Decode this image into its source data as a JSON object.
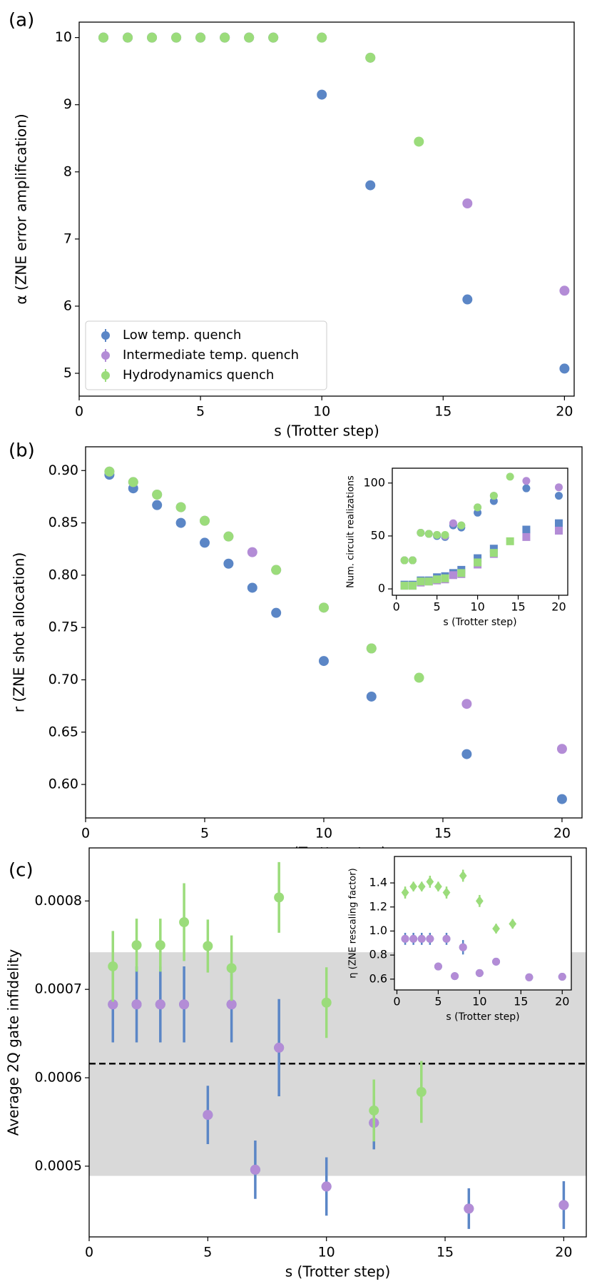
{
  "chart_data": [
    {
      "type": "scatter",
      "title": "(a)",
      "xlabel": "s (Trotter step)",
      "ylabel": "α (ZNE error amplification)",
      "xlim": [
        0,
        20.4
      ],
      "ylim": [
        4.66,
        10.23
      ],
      "xticks": [
        0,
        5,
        10,
        15,
        20
      ],
      "yticks": [
        5,
        6,
        7,
        8,
        9,
        10
      ],
      "legend": "lower left",
      "series": [
        {
          "name": "Low temp. quench",
          "color": "#5b86c6",
          "marker": "circle",
          "x": [
            1,
            2,
            3,
            4,
            5,
            6,
            7,
            8,
            10,
            12,
            16,
            20
          ],
          "y": [
            10,
            10,
            10,
            10,
            10,
            10,
            10,
            10,
            9.15,
            7.8,
            6.1,
            5.07
          ]
        },
        {
          "name": "Intermediate temp. quench",
          "color": "#b38cd6",
          "marker": "circle",
          "x": [
            1,
            2,
            3,
            4,
            5,
            6,
            7,
            8,
            10,
            12,
            16,
            20
          ],
          "y": [
            10,
            10,
            10,
            10,
            10,
            10,
            10,
            10,
            10,
            9.7,
            7.53,
            6.23
          ]
        },
        {
          "name": "Hydrodynamics quench",
          "color": "#9bdc7b",
          "marker": "circle",
          "x": [
            1,
            2,
            3,
            4,
            5,
            6,
            7,
            8,
            10,
            12,
            14
          ],
          "y": [
            10,
            10,
            10,
            10,
            10,
            10,
            10,
            10,
            10,
            9.7,
            8.45
          ]
        }
      ]
    },
    {
      "type": "scatter",
      "title": "(b)",
      "xlabel": "s (Trotter step)",
      "ylabel": "r (ZNE shot allocation)",
      "xlim": [
        0,
        20.84
      ],
      "ylim": [
        0.568,
        0.9227
      ],
      "xticks": [
        0,
        5,
        10,
        15,
        20
      ],
      "yticks": [
        {
          "value": 0.6,
          "label": "0.60"
        },
        0.65,
        {
          "value": 0.7,
          "label": "0.70"
        },
        0.75,
        {
          "value": 0.8,
          "label": "0.80"
        },
        0.85,
        {
          "value": 0.9,
          "label": "0.90"
        }
      ],
      "series": [
        {
          "color": "#5b86c6",
          "marker": "circle",
          "x": [
            1,
            2,
            3,
            4,
            5,
            6,
            7,
            8,
            10,
            12,
            16,
            20
          ],
          "y": [
            0.896,
            0.883,
            0.867,
            0.85,
            0.831,
            0.811,
            0.788,
            0.764,
            0.718,
            0.684,
            0.629,
            0.586
          ]
        },
        {
          "color": "#b38cd6",
          "marker": "circle",
          "x": [
            1,
            2,
            3,
            4,
            5,
            6,
            7,
            8,
            10,
            12,
            16,
            20
          ],
          "y": [
            0.899,
            0.889,
            0.877,
            0.865,
            0.852,
            0.837,
            0.822,
            0.805,
            0.769,
            0.73,
            0.677,
            0.634
          ]
        },
        {
          "color": "#9bdc7b",
          "marker": "circle",
          "x": [
            1,
            2,
            3,
            4,
            5,
            6,
            8,
            10,
            12,
            14
          ],
          "y": [
            0.899,
            0.889,
            0.877,
            0.865,
            0.852,
            0.837,
            0.805,
            0.769,
            0.73,
            0.702
          ]
        }
      ]
    },
    {
      "type": "scatter",
      "xlabel": "s (Trotter step)",
      "ylabel": "Num. circuit realizations",
      "xlim": [
        -0.5,
        21.1
      ],
      "ylim": [
        -6,
        114
      ],
      "xticks": [
        0,
        5,
        10,
        15,
        20
      ],
      "yticks": [
        0,
        50,
        100
      ],
      "series": [
        {
          "color": "#5b86c6",
          "marker": "circle",
          "x": [
            1,
            2,
            3,
            4,
            5,
            6,
            7,
            8,
            10,
            12,
            16,
            20
          ],
          "y": [
            27,
            27,
            53,
            52,
            50,
            49,
            60,
            58,
            72,
            83,
            95,
            88
          ]
        },
        {
          "color": "#b38cd6",
          "marker": "circle",
          "x": [
            1,
            2,
            3,
            4,
            5,
            6,
            7,
            8,
            10,
            12,
            16,
            20
          ],
          "y": [
            27,
            27,
            53,
            52,
            51,
            50,
            62,
            60,
            77,
            88,
            102,
            96
          ]
        },
        {
          "color": "#9bdc7b",
          "marker": "circle",
          "x": [
            1,
            2,
            3,
            4,
            5,
            6,
            8,
            10,
            12,
            14
          ],
          "y": [
            27,
            27,
            53,
            52,
            51,
            51,
            60,
            77,
            88,
            106
          ]
        },
        {
          "color": "#5b86c6",
          "marker": "square",
          "x": [
            1,
            2,
            3,
            4,
            5,
            6,
            7,
            8,
            10,
            12,
            16,
            20
          ],
          "y": [
            4,
            4,
            8,
            8,
            11,
            12,
            15,
            18,
            29,
            38,
            56,
            62
          ]
        },
        {
          "color": "#b38cd6",
          "marker": "square",
          "x": [
            1,
            2,
            3,
            4,
            5,
            6,
            7,
            8,
            10,
            12,
            16,
            20
          ],
          "y": [
            3,
            3,
            6,
            7,
            8,
            9,
            13,
            14,
            23,
            33,
            49,
            55
          ]
        },
        {
          "color": "#9bdc7b",
          "marker": "square",
          "x": [
            1,
            2,
            3,
            4,
            5,
            6,
            8,
            10,
            12,
            14
          ],
          "y": [
            3,
            3,
            7,
            7,
            9,
            10,
            15,
            25,
            34,
            45
          ]
        }
      ]
    },
    {
      "type": "scatter",
      "title": "(c)",
      "xlabel": "s (Trotter step)",
      "ylabel": "Average 2Q gate infidelity",
      "xlim": [
        0,
        20.95
      ],
      "ylim": [
        0.00042,
        0.00086
      ],
      "xticks": [
        0,
        5,
        10,
        15,
        20
      ],
      "yticks": [
        0.0005,
        0.0006,
        0.0007,
        0.0008
      ],
      "band": [
        0.000489,
        0.000742
      ],
      "hline": 0.000616,
      "series": [
        {
          "color": "#5b86c6",
          "marker": "circle",
          "x": [
            1,
            2,
            3,
            4,
            5,
            6,
            7,
            8,
            10,
            12,
            16,
            20
          ],
          "y": [
            0.000683,
            0.000683,
            0.000683,
            0.000683,
            0.000558,
            0.000683,
            0.000496,
            0.000634,
            0.000477,
            0.000549,
            0.000452,
            0.000456
          ],
          "yerr": [
            4.3e-05,
            4.3e-05,
            4.3e-05,
            4.3e-05,
            3.3e-05,
            4.3e-05,
            3.3e-05,
            5.5e-05,
            3.3e-05,
            3e-05,
            2.3e-05,
            2.7e-05
          ]
        },
        {
          "color": "#b38cd6",
          "marker": "circle",
          "x": [
            1,
            2,
            3,
            4,
            5,
            6,
            7,
            8,
            10,
            12,
            16,
            20
          ],
          "y": [
            0.000683,
            0.000683,
            0.000683,
            0.000683,
            0.000558,
            0.000683,
            0.000496,
            0.000634,
            0.000477,
            0.000549,
            0.000452,
            0.000456
          ]
        },
        {
          "color": "#9bdc7b",
          "marker": "circle",
          "x": [
            1,
            2,
            3,
            4,
            5,
            6,
            8,
            10,
            12,
            14
          ],
          "y": [
            0.000726,
            0.00075,
            0.00075,
            0.000776,
            0.000749,
            0.000724,
            0.000804,
            0.000685,
            0.000563,
            0.000584
          ],
          "yerr": [
            4e-05,
            3e-05,
            3e-05,
            4.4e-05,
            3e-05,
            3.7e-05,
            4e-05,
            4e-05,
            3.5e-05,
            3.5e-05
          ]
        }
      ]
    },
    {
      "type": "scatter",
      "xlabel": "s (Trotter step)",
      "ylabel": "η (ZNE rescaling factor)",
      "xlim": [
        -0.3,
        21.1
      ],
      "ylim": [
        0.51,
        1.62
      ],
      "xticks": [
        0,
        5,
        10,
        15,
        20
      ],
      "yticks": [
        0.6,
        0.8,
        {
          "value": 1,
          "label": "1.0"
        },
        1.2,
        1.4
      ],
      "series": [
        {
          "color": "#5b86c6",
          "marker": "circle",
          "x": [
            1,
            2,
            3,
            4,
            5,
            6,
            7,
            8,
            10,
            12,
            16,
            20
          ],
          "y": [
            0.935,
            0.935,
            0.935,
            0.935,
            0.705,
            0.935,
            0.625,
            0.865,
            0.65,
            0.745,
            0.615,
            0.62
          ],
          "yerr": [
            0.05,
            0.05,
            0.05,
            0.05,
            0.03,
            0.05,
            0.03,
            0.06,
            0.03,
            0.03,
            0.02,
            0.02
          ]
        },
        {
          "color": "#b38cd6",
          "marker": "circle",
          "x": [
            1,
            2,
            3,
            4,
            5,
            6,
            7,
            8,
            10,
            12,
            16,
            20
          ],
          "y": [
            0.935,
            0.935,
            0.935,
            0.935,
            0.705,
            0.935,
            0.625,
            0.865,
            0.65,
            0.745,
            0.615,
            0.62
          ]
        },
        {
          "color": "#9bdc7b",
          "marker": "diamond",
          "x": [
            1,
            2,
            3,
            4,
            5,
            6,
            8,
            10,
            12,
            14
          ],
          "y": [
            1.32,
            1.37,
            1.37,
            1.41,
            1.37,
            1.32,
            1.46,
            1.25,
            1.02,
            1.06
          ],
          "yerr": [
            0.05,
            0.04,
            0.04,
            0.05,
            0.04,
            0.05,
            0.05,
            0.05,
            0.04,
            0.04
          ]
        }
      ]
    }
  ]
}
